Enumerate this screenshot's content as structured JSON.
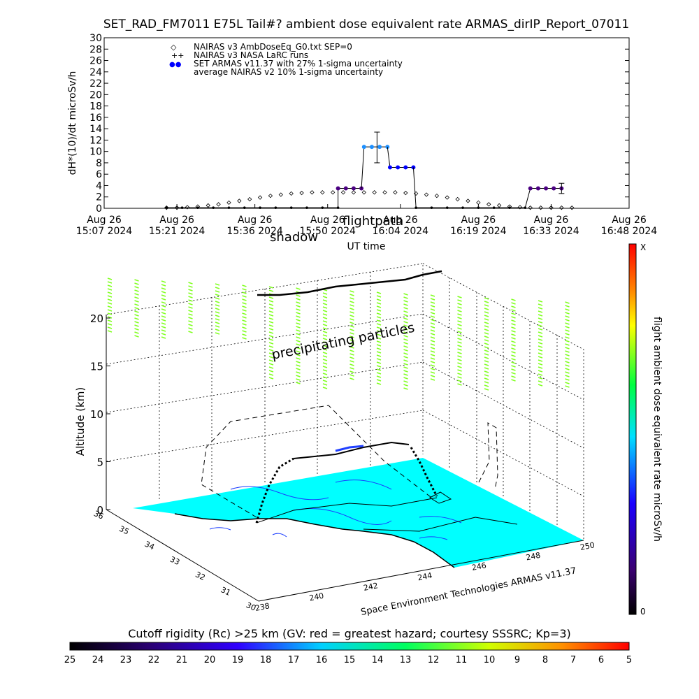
{
  "colors": {
    "rate_scale_stops": [
      "#000000",
      "#3a0070",
      "#1a00ff",
      "#00e0ff",
      "#00ff40",
      "#ffff00",
      "#ff8000",
      "#ff0000"
    ],
    "rc_scale_stops": [
      "#000000",
      "#2a0070",
      "#3000ff",
      "#00d0ff",
      "#00ff60",
      "#d0ff00",
      "#ff9000",
      "#ff0000"
    ],
    "ground": "#00ffff",
    "armas_blue": "#0000ff",
    "armas_light": "#1e90ff",
    "armas_purple": "#4b0082",
    "precip_green": "#80ff20"
  },
  "header": {
    "title": "SET_RAD_FM7011   E75L Tail#? ambient dose equivalent rate ARMAS_dirIP_Report_07011"
  },
  "chart_data": [
    {
      "type": "scatter",
      "ylabel": "dH*(10)/dt microSv/h",
      "xlabel": "UT time",
      "ylim": [
        0,
        30
      ],
      "yticks": [
        "0",
        "2",
        "4",
        "6",
        "8",
        "10",
        "12",
        "14",
        "16",
        "18",
        "20",
        "22",
        "24",
        "26",
        "28",
        "30"
      ],
      "xticks": [
        {
          "date": "Aug 26",
          "time": "15:07 2024",
          "min": 0
        },
        {
          "date": "Aug 26",
          "time": "15:21 2024",
          "min": 14
        },
        {
          "date": "Aug 26",
          "time": "15:36 2024",
          "min": 29
        },
        {
          "date": "Aug 26",
          "time": "15:50 2024",
          "min": 43
        },
        {
          "date": "Aug 26",
          "time": "16:04 2024",
          "min": 57
        },
        {
          "date": "Aug 26",
          "time": "16:19 2024",
          "min": 72
        },
        {
          "date": "Aug 26",
          "time": "16:33 2024",
          "min": 86
        },
        {
          "date": "Aug 26",
          "time": "16:48 2024",
          "min": 101
        }
      ],
      "xlim_minutes": [
        0,
        101
      ],
      "legend": [
        {
          "symbol": "◇",
          "text": "NAIRAS v3 AmbDoseEq_G0.txt SEP=0"
        },
        {
          "symbol": "++",
          "text": "NAIRAS v3 NASA LaRC runs"
        },
        {
          "symbol": "●●",
          "text": "SET ARMAS v11.37 with 27% 1-sigma uncertainty"
        },
        {
          "symbol": "",
          "text": "average NAIRAS v2 10% 1-sigma uncertainty"
        }
      ],
      "overlay_labels": [
        "shadow",
        "flightpath"
      ],
      "nairas_v3": {
        "x": [
          12,
          14,
          16,
          18,
          20,
          22,
          24,
          26,
          28,
          30,
          32,
          34,
          36,
          38,
          40,
          42,
          44,
          46,
          48,
          50,
          52,
          54,
          56,
          58,
          60,
          62,
          64,
          66,
          68,
          70,
          72,
          74,
          76,
          78,
          80,
          82,
          84,
          86,
          88,
          90
        ],
        "y": [
          0.1,
          0.1,
          0.2,
          0.3,
          0.5,
          0.7,
          1.0,
          1.3,
          1.6,
          1.9,
          2.2,
          2.4,
          2.6,
          2.7,
          2.8,
          2.8,
          2.8,
          2.8,
          2.8,
          2.8,
          2.8,
          2.8,
          2.8,
          2.7,
          2.6,
          2.4,
          2.2,
          1.9,
          1.6,
          1.3,
          1.0,
          0.7,
          0.5,
          0.3,
          0.2,
          0.1,
          0.1,
          0.1,
          0.1,
          0.1
        ]
      },
      "armas_segments": [
        {
          "x": [
            12,
            15,
            18,
            21,
            24,
            27,
            30,
            33,
            36,
            39,
            42,
            45
          ],
          "y": [
            0.1,
            0.1,
            0.1,
            0.1,
            0.1,
            0.1,
            0.1,
            0.1,
            0.1,
            0.1,
            0.1,
            0.1
          ],
          "color": "#000000"
        },
        {
          "x": [
            45,
            46.5,
            48,
            49.5
          ],
          "y": [
            3.5,
            3.5,
            3.5,
            3.5
          ],
          "color": "#4b0082"
        },
        {
          "x": [
            50,
            51.5,
            53,
            54.5
          ],
          "y": [
            10.8,
            10.8,
            10.8,
            10.8
          ],
          "color": "#1e90ff"
        },
        {
          "x": [
            55,
            56.5,
            58,
            59.5
          ],
          "y": [
            7.2,
            7.2,
            7.2,
            7.2
          ],
          "color": "#0000ff"
        },
        {
          "x": [
            60,
            63,
            66,
            69,
            72,
            75,
            78,
            81
          ],
          "y": [
            0.1,
            0.1,
            0.1,
            0.1,
            0.1,
            0.1,
            0.1,
            0.1
          ],
          "color": "#000000"
        },
        {
          "x": [
            82,
            83.5,
            85,
            86.5,
            88
          ],
          "y": [
            3.5,
            3.5,
            3.5,
            3.5,
            3.5
          ],
          "color": "#4b0082"
        }
      ],
      "error_bars": [
        {
          "x": 52.5,
          "y": 10.8,
          "lo": 8.0,
          "hi": 13.4
        },
        {
          "x": 88,
          "y": 3.5,
          "lo": 2.6,
          "hi": 4.4
        }
      ]
    },
    {
      "type": "3d-flight-path",
      "zlabel": "Altitude (km)",
      "zticks": [
        "0",
        "5",
        "10",
        "15",
        "20"
      ],
      "lat_ticks": [
        "36",
        "35",
        "34",
        "33",
        "32",
        "31",
        "30"
      ],
      "lon_ticks": [
        "238",
        "240",
        "242",
        "244",
        "246",
        "248",
        "250"
      ],
      "annotation": "precipitating particles",
      "credit": "Space Environment Technologies ARMAS v11.37",
      "cruise_altitude_km": 7
    }
  ],
  "rate_scale": {
    "label": "flight ambient dose equivalent rate microSv/h",
    "top": "X",
    "bottom": "0"
  },
  "rc_scale": {
    "title": "Cutoff rigidity (Rc) >25 km (GV: red = greatest hazard; courtesy SSSRC; Kp=3)",
    "ticks": [
      "25",
      "24",
      "23",
      "22",
      "21",
      "20",
      "19",
      "18",
      "17",
      "16",
      "15",
      "14",
      "13",
      "12",
      "11",
      "10",
      "9",
      "8",
      "7",
      "6",
      "5"
    ]
  }
}
